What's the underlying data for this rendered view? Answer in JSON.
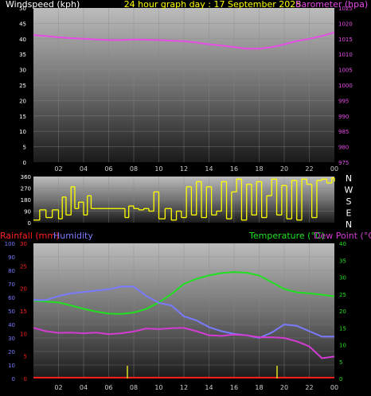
{
  "colors": {
    "wind_title": "#ffffff",
    "baro": "#e64ce6",
    "date_title": "#ffff00",
    "wind_dir": "#ffff00",
    "rain": "#ff2020",
    "humidity": "#7a7aff",
    "temperature": "#20e020",
    "dew_point": "#d23cd2",
    "axis_ticks": "#cfcfcf"
  },
  "chart_data": [
    {
      "type": "line",
      "title": "24 hour graph day : 17 September 2025",
      "ylabel_left": "Windspeed (kph)",
      "ylabel_right": "Barometer (hpa)",
      "ylim_left": [
        0,
        50
      ],
      "ylim_right": [
        975,
        1025
      ],
      "yticks_left": [
        "0",
        "5",
        "10",
        "15",
        "20",
        "25",
        "30",
        "35",
        "40",
        "45",
        "50"
      ],
      "yticks_right": [
        "975",
        "980",
        "985",
        "990",
        "995",
        "1000",
        "1005",
        "1010",
        "1015",
        "1020",
        "1025"
      ],
      "xlim": [
        0,
        24
      ],
      "xticks": [
        "02",
        "04",
        "06",
        "08",
        "10",
        "12",
        "14",
        "16",
        "18",
        "20",
        "22",
        "00"
      ],
      "series": [
        {
          "name": "Barometer",
          "axis": "right",
          "x": [
            0,
            1,
            2,
            3,
            4,
            5,
            6,
            7,
            8,
            9,
            10,
            11,
            12,
            13,
            14,
            15,
            16,
            17,
            18,
            19,
            20,
            21,
            22,
            23,
            24
          ],
          "y": [
            1016.2,
            1015.9,
            1015.5,
            1015.2,
            1015.0,
            1014.8,
            1014.6,
            1014.6,
            1014.8,
            1014.7,
            1014.6,
            1014.4,
            1014.2,
            1013.8,
            1013.2,
            1012.8,
            1012.3,
            1011.8,
            1011.8,
            1012.3,
            1013.2,
            1014.3,
            1015.0,
            1015.9,
            1017.1
          ]
        }
      ]
    },
    {
      "type": "scatter",
      "ylim": [
        0,
        360
      ],
      "yticks": [
        "0",
        "90",
        "180",
        "270",
        "360"
      ],
      "right_labels": [
        "N",
        "W",
        "S",
        "E",
        "N"
      ],
      "xlim": [
        0,
        24
      ],
      "series": [
        {
          "name": "Wind direction",
          "x": [
            0.0,
            0.5,
            1.0,
            1.5,
            2.0,
            2.3,
            2.6,
            3.0,
            3.3,
            3.6,
            4.0,
            4.3,
            4.6,
            5.0,
            5.5,
            6.0,
            6.5,
            7.0,
            7.3,
            7.6,
            8.0,
            8.4,
            8.8,
            9.2,
            9.6,
            10.0,
            10.5,
            11.0,
            11.4,
            11.8,
            12.2,
            12.6,
            13.0,
            13.4,
            13.8,
            14.2,
            14.6,
            15.0,
            15.4,
            15.8,
            16.2,
            16.6,
            17.0,
            17.4,
            17.8,
            18.2,
            18.6,
            19.0,
            19.4,
            19.8,
            20.2,
            20.6,
            21.0,
            21.4,
            21.8,
            22.2,
            22.6,
            23.0,
            23.4,
            23.8,
            24.0
          ],
          "y": [
            20,
            100,
            40,
            100,
            30,
            200,
            60,
            280,
            110,
            160,
            60,
            210,
            110,
            110,
            110,
            110,
            110,
            110,
            40,
            130,
            110,
            100,
            110,
            90,
            240,
            30,
            110,
            20,
            90,
            40,
            280,
            60,
            320,
            40,
            280,
            60,
            90,
            320,
            30,
            240,
            340,
            20,
            300,
            60,
            320,
            40,
            210,
            340,
            60,
            290,
            30,
            330,
            20,
            340,
            300,
            40,
            330,
            340,
            310,
            350,
            320
          ]
        }
      ]
    },
    {
      "type": "line",
      "ylabel_left_1": "Rainfall (mm)",
      "ylabel_left_2": "Humidity",
      "ylabel_right_1": "Temperature (°C)",
      "ylabel_right_2": "Dew Point (°C)",
      "ylim_humidity": [
        0,
        100
      ],
      "ylim_rain": [
        0,
        30
      ],
      "ylim_temp": [
        0,
        40
      ],
      "yticks_humidity": [
        "0",
        "10",
        "20",
        "30",
        "40",
        "50",
        "60",
        "70",
        "80",
        "90",
        "100"
      ],
      "yticks_rain": [
        "0",
        "5",
        "10",
        "15",
        "20",
        "25",
        "30"
      ],
      "yticks_temp": [
        "0",
        "5",
        "10",
        "15",
        "20",
        "25",
        "30",
        "35",
        "40"
      ],
      "xlim": [
        0,
        24
      ],
      "xticks": [
        "02",
        "04",
        "06",
        "08",
        "10",
        "12",
        "14",
        "16",
        "18",
        "20",
        "22",
        "00"
      ],
      "series": [
        {
          "name": "Temperature",
          "axis": "temp",
          "x": [
            0,
            1,
            2,
            3,
            4,
            5,
            6,
            7,
            8,
            9,
            10,
            11,
            12,
            13,
            14,
            15,
            16,
            17,
            18,
            19,
            20,
            21,
            22,
            23,
            24
          ],
          "y": [
            23.0,
            22.8,
            22.5,
            21.6,
            20.6,
            19.8,
            19.2,
            19.1,
            19.5,
            20.6,
            22.5,
            25.0,
            28.0,
            29.5,
            30.5,
            31.2,
            31.5,
            31.3,
            30.5,
            28.5,
            26.5,
            25.5,
            25.2,
            24.8,
            24.3
          ]
        },
        {
          "name": "Dew Point",
          "axis": "temp",
          "x": [
            0,
            1,
            2,
            3,
            4,
            5,
            6,
            7,
            8,
            9,
            10,
            11,
            12,
            13,
            14,
            15,
            16,
            17,
            18,
            19,
            20,
            21,
            22,
            23,
            24
          ],
          "y": [
            15.0,
            14.0,
            13.5,
            13.6,
            13.4,
            13.6,
            13.1,
            13.4,
            13.9,
            14.8,
            14.6,
            14.9,
            15.0,
            14.0,
            12.8,
            12.6,
            13.0,
            12.8,
            12.2,
            12.2,
            12.0,
            11.0,
            9.5,
            6.0,
            6.5
          ]
        },
        {
          "name": "Humidity",
          "axis": "humidity",
          "x": [
            0,
            1,
            2,
            3,
            4,
            5,
            6,
            7,
            8,
            9,
            10,
            11,
            12,
            13,
            14,
            15,
            16,
            17,
            18,
            19,
            20,
            21,
            22,
            23,
            24
          ],
          "y": [
            58,
            58,
            61,
            63,
            64,
            65,
            66,
            68,
            68,
            61,
            56,
            54,
            46,
            43,
            38,
            35,
            33,
            32,
            30,
            34,
            40,
            39,
            35,
            31,
            31
          ]
        },
        {
          "name": "Rainfall",
          "axis": "rain",
          "x": [
            0,
            24
          ],
          "y": [
            0.2,
            0.2
          ]
        }
      ]
    }
  ]
}
